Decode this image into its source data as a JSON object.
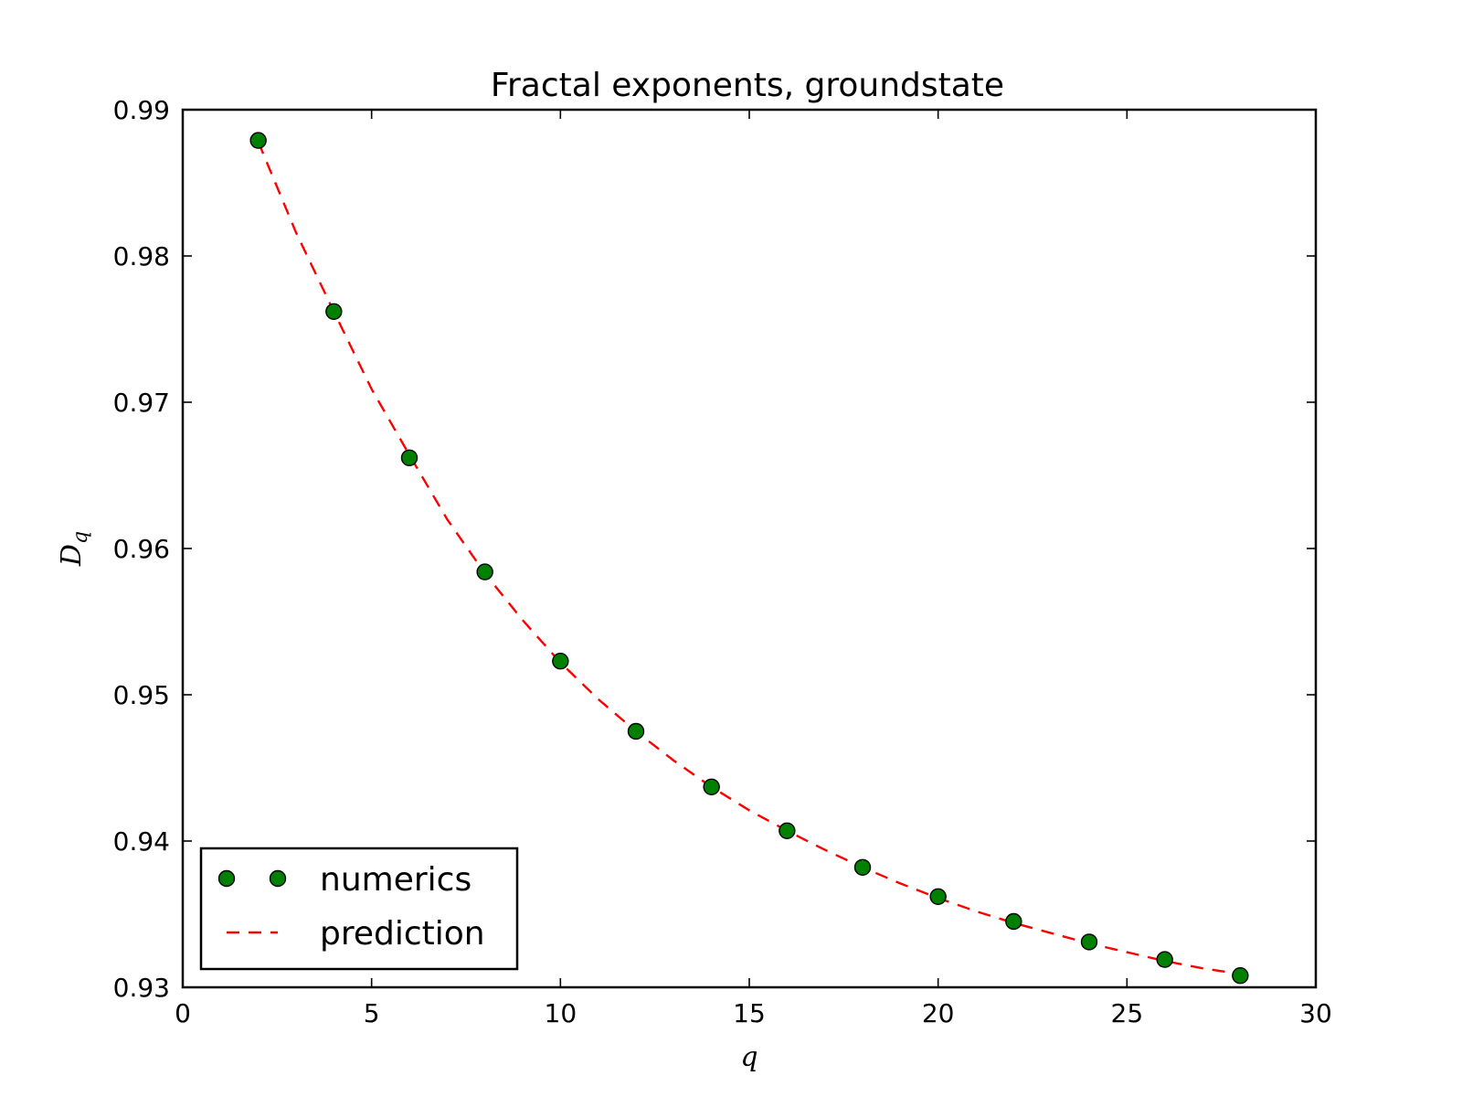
{
  "chart_data": {
    "type": "scatter",
    "title": "Fractal exponents, groundstate",
    "xlabel": "q",
    "ylabel_base": "D",
    "ylabel_sub": "q",
    "xlim": [
      0,
      30
    ],
    "ylim": [
      0.93,
      0.99
    ],
    "xticks": [
      0,
      5,
      10,
      15,
      20,
      25,
      30
    ],
    "yticks": [
      0.93,
      0.94,
      0.95,
      0.96,
      0.97,
      0.98,
      0.99
    ],
    "xtick_labels": [
      "0",
      "5",
      "10",
      "15",
      "20",
      "25",
      "30"
    ],
    "ytick_labels": [
      "0.93",
      "0.94",
      "0.95",
      "0.96",
      "0.97",
      "0.98",
      "0.99"
    ],
    "grid": false,
    "legend_position": "lower-left",
    "series": [
      {
        "name": "numerics",
        "style": "markers",
        "color": "#008000",
        "x": [
          2,
          4,
          6,
          8,
          10,
          12,
          14,
          16,
          18,
          20,
          22,
          24,
          26,
          28
        ],
        "y": [
          0.9879,
          0.9762,
          0.9662,
          0.9584,
          0.9523,
          0.9475,
          0.9437,
          0.9407,
          0.9382,
          0.9362,
          0.9345,
          0.9331,
          0.9319,
          0.9308
        ]
      },
      {
        "name": "prediction",
        "style": "dashed-line",
        "color": "#ff0000",
        "x": [
          2,
          3,
          4,
          5,
          6,
          7,
          8,
          9,
          10,
          11,
          12,
          13,
          14,
          15,
          16,
          17,
          18,
          19,
          20,
          21,
          22,
          23,
          24,
          25,
          26,
          27,
          28
        ],
        "y": [
          0.9878,
          0.9816,
          0.9762,
          0.9709,
          0.9664,
          0.962,
          0.9583,
          0.9551,
          0.9522,
          0.9497,
          0.9475,
          0.9455,
          0.9437,
          0.9421,
          0.9407,
          0.9394,
          0.9382,
          0.9371,
          0.9361,
          0.9352,
          0.9344,
          0.9337,
          0.933,
          0.9324,
          0.9318,
          0.9313,
          0.9309
        ]
      }
    ]
  }
}
